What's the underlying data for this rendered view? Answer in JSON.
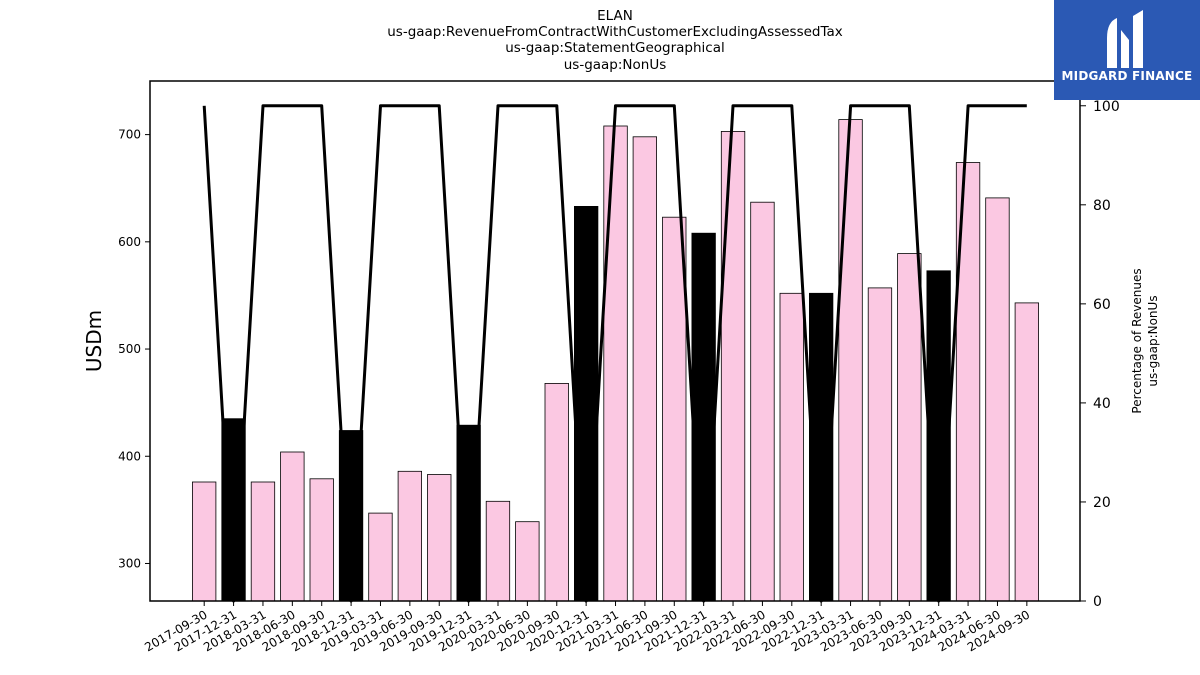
{
  "chart_data": {
    "type": "bar",
    "title_lines": [
      "ELAN",
      "us-gaap:RevenueFromContractWithCustomerExcludingAssessedTax",
      "us-gaap:StatementGeographical",
      "us-gaap:NonUs"
    ],
    "categories": [
      "2017-09-30",
      "2017-12-31",
      "2018-03-31",
      "2018-06-30",
      "2018-09-30",
      "2018-12-31",
      "2019-03-31",
      "2019-06-30",
      "2019-09-30",
      "2019-12-31",
      "2020-03-31",
      "2020-06-30",
      "2020-09-30",
      "2020-12-31",
      "2021-03-31",
      "2021-06-30",
      "2021-09-30",
      "2021-12-31",
      "2022-03-31",
      "2022-06-30",
      "2022-09-30",
      "2022-12-31",
      "2023-03-31",
      "2023-06-30",
      "2023-09-30",
      "2023-12-31",
      "2024-03-31",
      "2024-06-30",
      "2024-09-30"
    ],
    "series": [
      {
        "axis": "left",
        "kind": "bar",
        "values": [
          376,
          435,
          376,
          404,
          379,
          424,
          347,
          386,
          383,
          429,
          358,
          339,
          468,
          633,
          708,
          698,
          623,
          608,
          703,
          637,
          552,
          552,
          714,
          557,
          589,
          573,
          674,
          641,
          543
        ]
      },
      {
        "axis": "right",
        "kind": "line",
        "values": [
          100,
          0,
          100,
          100,
          100,
          0,
          100,
          100,
          100,
          0,
          100,
          100,
          100,
          0,
          100,
          100,
          100,
          0,
          100,
          100,
          100,
          0,
          100,
          100,
          100,
          0,
          100,
          100,
          100
        ]
      }
    ],
    "bar_colors": {
      "default": "#fbc8e2",
      "annual": "#000000",
      "edge": "#000000"
    },
    "line_color": "#000000",
    "ylabel_left": "USDm",
    "ylabel_right": [
      "Percentage of Revenues",
      "us-gaap:NonUs"
    ],
    "ylim_left": [
      265,
      750
    ],
    "yticks_left": [
      "300",
      "400",
      "500",
      "600",
      "700"
    ],
    "ylim_right": [
      0,
      105
    ],
    "yticks_right": [
      "0",
      "20",
      "40",
      "60",
      "80",
      "100"
    ],
    "grid": false,
    "legend": "none"
  },
  "logo": {
    "text": "MIDGARD FINANCE",
    "bg_color": "#2b59b4"
  }
}
